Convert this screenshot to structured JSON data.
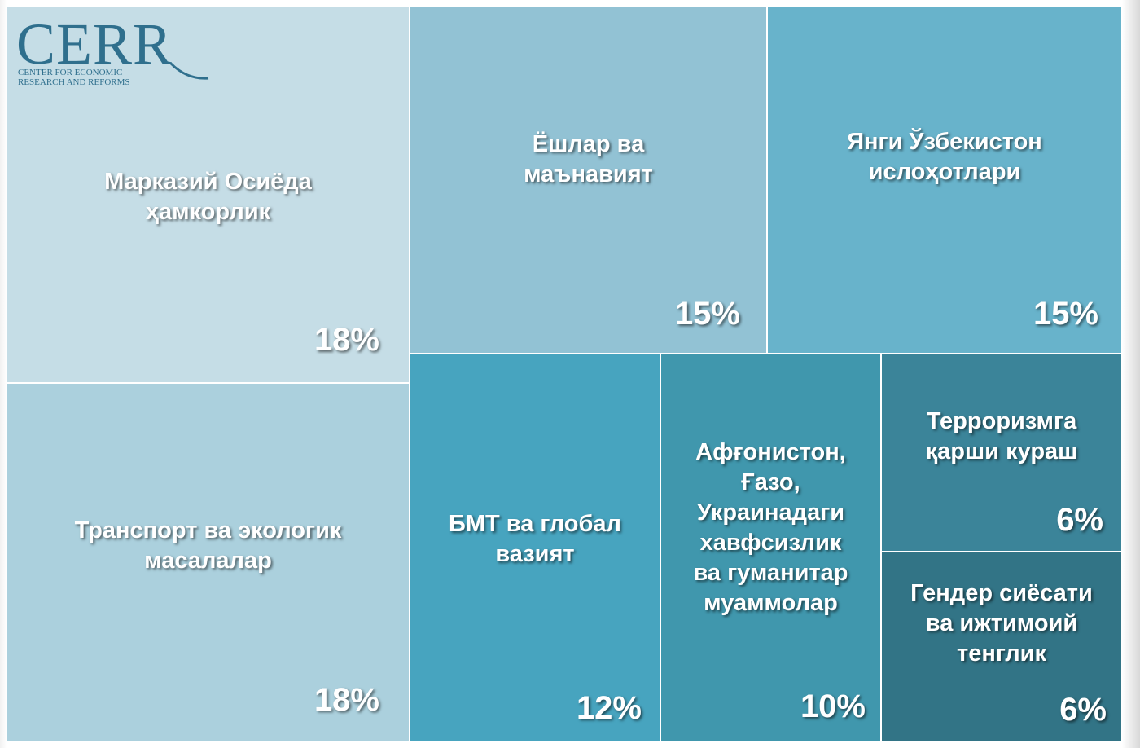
{
  "chart_data": {
    "type": "treemap",
    "title": "",
    "items": [
      {
        "label": "Марказий Осиёда\nҳамкорлик",
        "value": 18,
        "value_label": "18%",
        "color": "#c5dde6"
      },
      {
        "label": "Транспорт ва экологик\nмасалалар",
        "value": 18,
        "value_label": "18%",
        "color": "#abd0dd"
      },
      {
        "label": "Ёшлар ва\nмаънавият",
        "value": 15,
        "value_label": "15%",
        "color": "#92c2d4"
      },
      {
        "label": "Янги Ўзбекистон\nислоҳотлари",
        "value": 15,
        "value_label": "15%",
        "color": "#68b3cb"
      },
      {
        "label": "БМТ ва глобал\nвазият",
        "value": 12,
        "value_label": "12%",
        "color": "#47a4bf"
      },
      {
        "label": "Афғонистон,\nҒазо,\nУкраинадаги\nхавфсизлик\nва гуманитар\nмуаммолар",
        "value": 10,
        "value_label": "10%",
        "color": "#4097ad"
      },
      {
        "label": "Терроризмга\nқарши кураш",
        "value": 6,
        "value_label": "6%",
        "color": "#3b8499"
      },
      {
        "label": "Гендер сиёсати\nва ижтимоий\nтенглик",
        "value": 6,
        "value_label": "6%",
        "color": "#327486"
      }
    ]
  },
  "logo": {
    "word": "CERR",
    "line1": "CENTER FOR ECONOMIC",
    "line2": "RESEARCH AND REFORMS"
  }
}
